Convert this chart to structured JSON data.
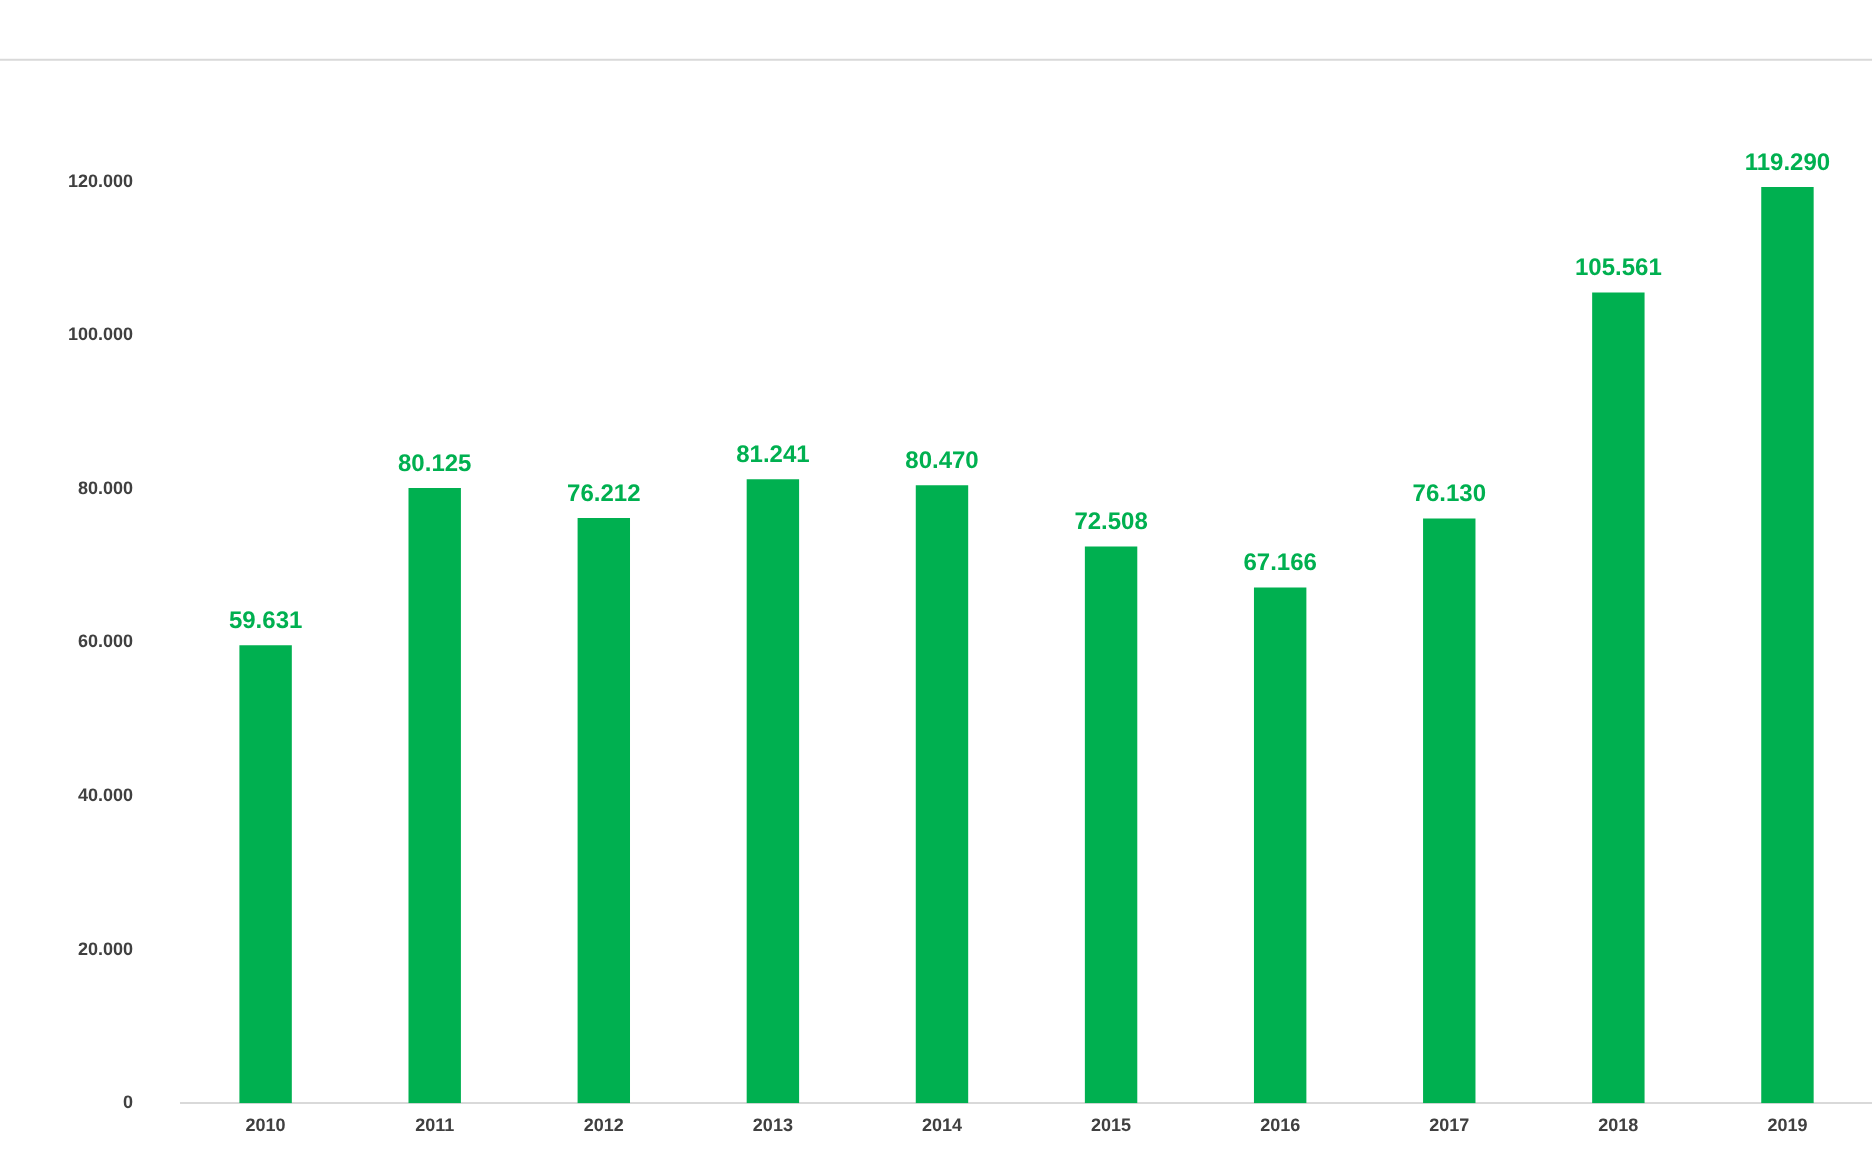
{
  "chart_data": {
    "type": "bar",
    "categories": [
      "2010",
      "2011",
      "2012",
      "2013",
      "2014",
      "2015",
      "2016",
      "2017",
      "2018",
      "2019"
    ],
    "values": [
      59631,
      80125,
      76212,
      81241,
      80470,
      72508,
      67166,
      76130,
      105561,
      119290
    ],
    "value_labels": [
      "59.631",
      "80.125",
      "76.212",
      "81.241",
      "80.470",
      "72.508",
      "67.166",
      "76.130",
      "105.561",
      "119.290"
    ],
    "color": "#00b050",
    "ylim": [
      0,
      136000
    ],
    "yticks": [
      {
        "value": 0,
        "label": "0"
      },
      {
        "value": 20000,
        "label": "20.000"
      },
      {
        "value": 40000,
        "label": "40.000"
      },
      {
        "value": 60000,
        "label": "60.000"
      },
      {
        "value": 80000,
        "label": "80.000"
      },
      {
        "value": 100000,
        "label": "100.000"
      },
      {
        "value": 120000,
        "label": "120.000"
      }
    ],
    "grid": false,
    "legend": false
  }
}
